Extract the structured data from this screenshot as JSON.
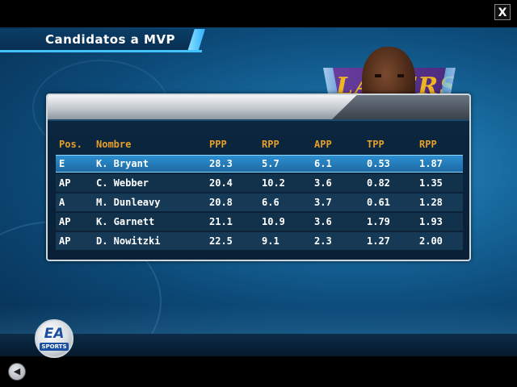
{
  "screen": {
    "title": "Candidatos a MVP",
    "close_label": "X"
  },
  "photo": {
    "team_logo_text": "LAKERS"
  },
  "table": {
    "headers": {
      "pos": "Pos.",
      "name": "Nombre",
      "ppp": "PPP",
      "rpp": "RPP",
      "app": "APP",
      "tpp": "TPP",
      "rpp2": "RPP"
    },
    "rows": [
      {
        "pos": "E",
        "name": "K. Bryant",
        "ppp": "28.3",
        "rpp": "5.7",
        "app": "6.1",
        "tpp": "0.53",
        "rpp2": "1.87"
      },
      {
        "pos": "AP",
        "name": "C. Webber",
        "ppp": "20.4",
        "rpp": "10.2",
        "app": "3.6",
        "tpp": "0.82",
        "rpp2": "1.35"
      },
      {
        "pos": "A",
        "name": "M. Dunleavy",
        "ppp": "20.8",
        "rpp": "6.6",
        "app": "3.7",
        "tpp": "0.61",
        "rpp2": "1.28"
      },
      {
        "pos": "AP",
        "name": "K. Garnett",
        "ppp": "21.1",
        "rpp": "10.9",
        "app": "3.6",
        "tpp": "1.79",
        "rpp2": "1.93"
      },
      {
        "pos": "AP",
        "name": "D. Nowitzki",
        "ppp": "22.5",
        "rpp": "9.1",
        "app": "2.3",
        "tpp": "1.27",
        "rpp2": "2.00"
      }
    ],
    "selected_index": 0
  },
  "footer": {
    "logo_ea": "EA",
    "logo_sports": "SPORTS",
    "back_icon": "back-arrow-icon"
  },
  "colors": {
    "header_text": "#e6a02a",
    "accent": "#3fc2ff",
    "selected_row": "#2d8fd0"
  }
}
